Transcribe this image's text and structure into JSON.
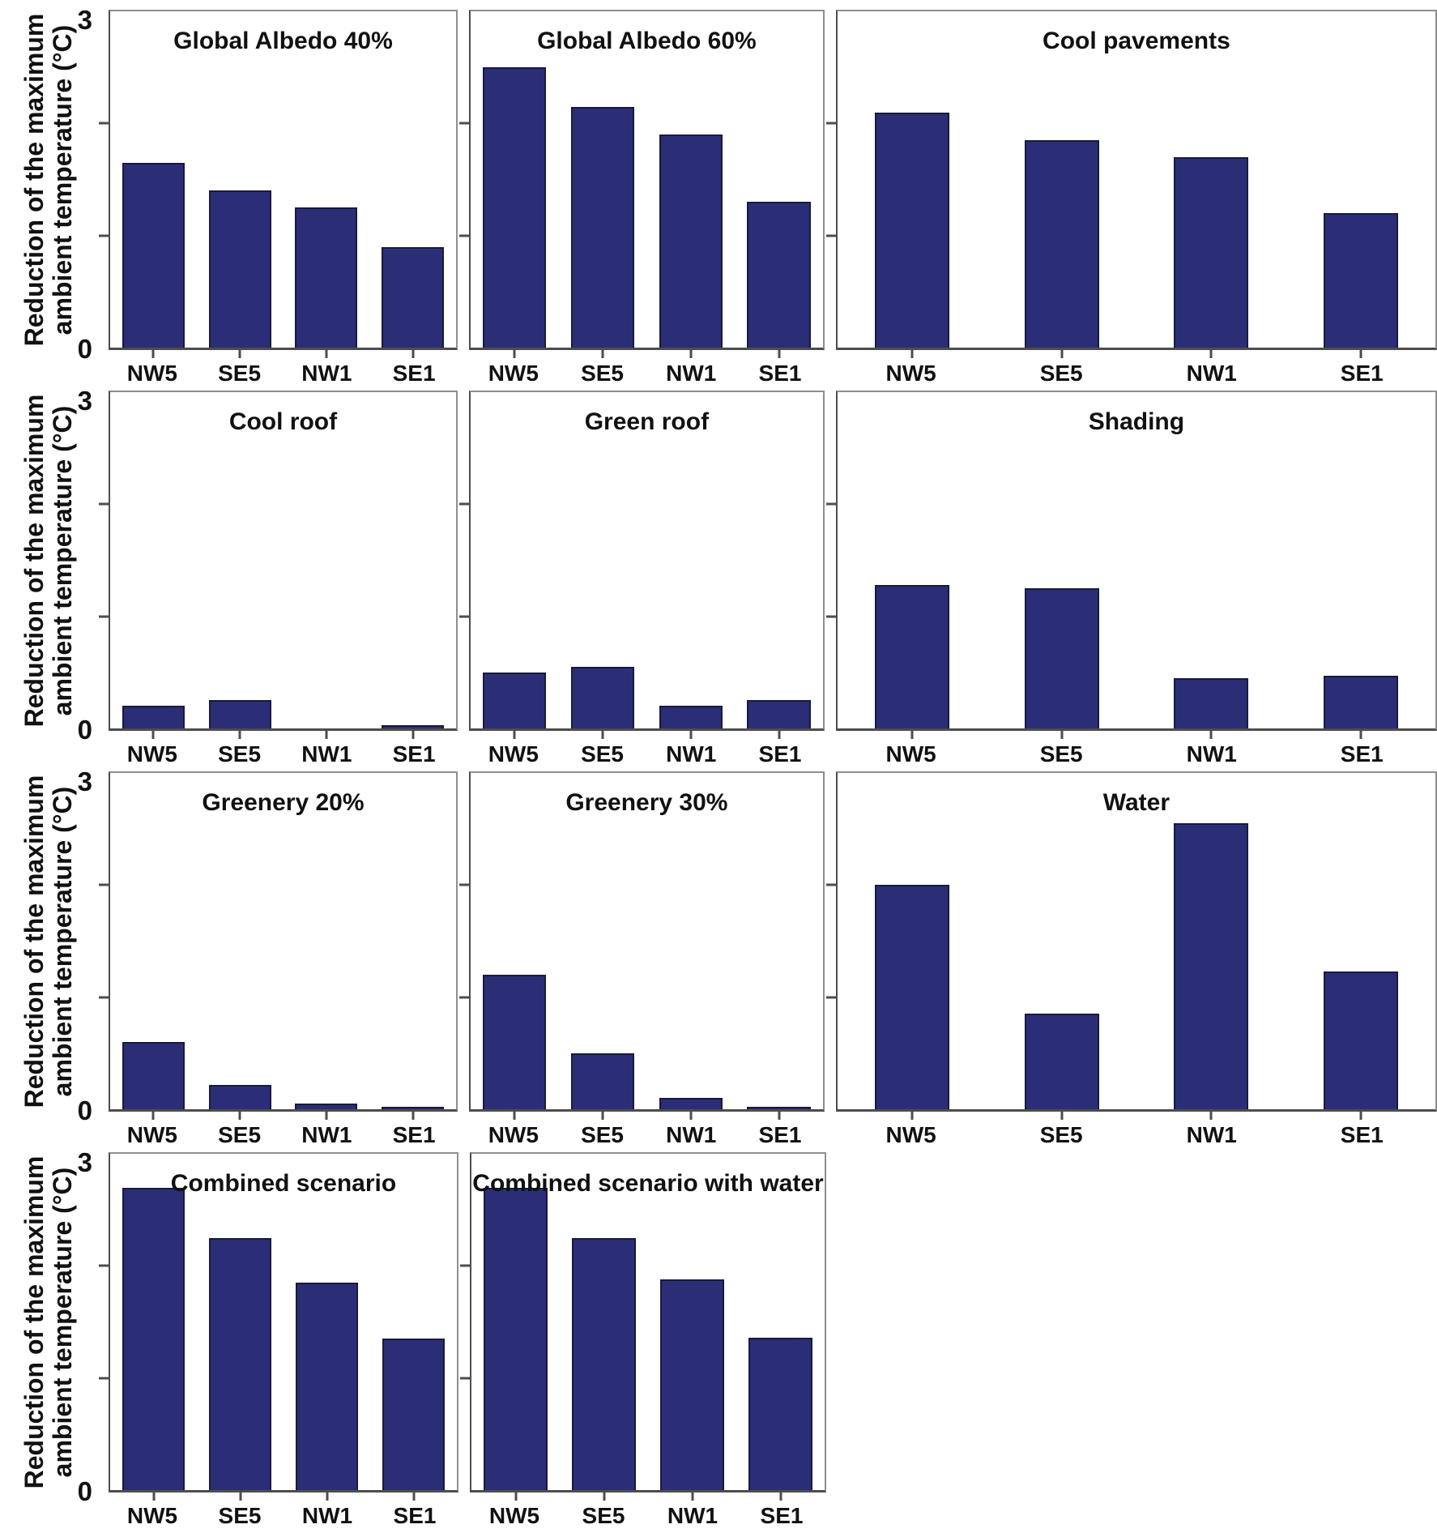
{
  "figure": {
    "ylabel": "Reduction of the maximum ambient temperature (°C)",
    "y_axis": {
      "top_label": "3",
      "bottom_label": "0",
      "ymax": 3,
      "minor_ticks": [
        1,
        2
      ]
    }
  },
  "colors": {
    "bar_fill": "#2b2e76",
    "bar_edge": "#181a3e",
    "panel_border": "#8f8f8f",
    "axis_line": "#4d4d4d",
    "text": "#111111"
  },
  "chart_data": [
    {
      "type": "bar",
      "title": "Global Albedo 40%",
      "categories": [
        "NW5",
        "SE5",
        "NW1",
        "SE1"
      ],
      "values": [
        1.65,
        1.4,
        1.25,
        0.9
      ],
      "xlabel": "",
      "ylabel": "Reduction of the maximum ambient temperature (°C)",
      "ylim": [
        0,
        3
      ],
      "grid": false,
      "legend": "none"
    },
    {
      "type": "bar",
      "title": "Global Albedo 60%",
      "categories": [
        "NW5",
        "SE5",
        "NW1",
        "SE1"
      ],
      "values": [
        2.5,
        2.15,
        1.9,
        1.3
      ],
      "xlabel": "",
      "ylabel": "Reduction of the maximum ambient temperature (°C)",
      "ylim": [
        0,
        3
      ],
      "grid": false,
      "legend": "none"
    },
    {
      "type": "bar",
      "title": "Cool pavements",
      "categories": [
        "NW5",
        "SE5",
        "NW1",
        "SE1"
      ],
      "values": [
        2.1,
        1.85,
        1.7,
        1.2
      ],
      "xlabel": "",
      "ylabel": "Reduction of the maximum ambient temperature (°C)",
      "ylim": [
        0,
        3
      ],
      "grid": false,
      "legend": "none"
    },
    {
      "type": "bar",
      "title": "Cool roof",
      "categories": [
        "NW5",
        "SE5",
        "NW1",
        "SE1"
      ],
      "values": [
        0.2,
        0.25,
        0.0,
        0.03
      ],
      "xlabel": "",
      "ylabel": "Reduction of the maximum ambient temperature (°C)",
      "ylim": [
        0,
        3
      ],
      "grid": false,
      "legend": "none"
    },
    {
      "type": "bar",
      "title": "Green roof",
      "categories": [
        "NW5",
        "SE5",
        "NW1",
        "SE1"
      ],
      "values": [
        0.5,
        0.55,
        0.2,
        0.25
      ],
      "xlabel": "",
      "ylabel": "Reduction of the maximum ambient temperature (°C)",
      "ylim": [
        0,
        3
      ],
      "grid": false,
      "legend": "none"
    },
    {
      "type": "bar",
      "title": "Shading",
      "categories": [
        "NW5",
        "SE5",
        "NW1",
        "SE1"
      ],
      "values": [
        1.28,
        1.25,
        0.45,
        0.47
      ],
      "xlabel": "",
      "ylabel": "Reduction of the maximum ambient temperature (°C)",
      "ylim": [
        0,
        3
      ],
      "grid": false,
      "legend": "none"
    },
    {
      "type": "bar",
      "title": "Greenery 20%",
      "categories": [
        "NW5",
        "SE5",
        "NW1",
        "SE1"
      ],
      "values": [
        0.6,
        0.22,
        0.05,
        0.02
      ],
      "xlabel": "",
      "ylabel": "Reduction of the maximum ambient temperature (°C)",
      "ylim": [
        0,
        3
      ],
      "grid": false,
      "legend": "none"
    },
    {
      "type": "bar",
      "title": "Greenery 30%",
      "categories": [
        "NW5",
        "SE5",
        "NW1",
        "SE1"
      ],
      "values": [
        1.2,
        0.5,
        0.1,
        0.02
      ],
      "xlabel": "",
      "ylabel": "Reduction of the maximum ambient temperature (°C)",
      "ylim": [
        0,
        3
      ],
      "grid": false,
      "legend": "none"
    },
    {
      "type": "bar",
      "title": "Water",
      "categories": [
        "NW5",
        "SE5",
        "NW1",
        "SE1"
      ],
      "values": [
        2.0,
        0.85,
        2.55,
        1.23
      ],
      "xlabel": "",
      "ylabel": "Reduction of the maximum ambient temperature (°C)",
      "ylim": [
        0,
        3
      ],
      "grid": false,
      "legend": "none"
    },
    {
      "type": "bar",
      "title": "Combined scenario",
      "categories": [
        "NW5",
        "SE5",
        "NW1",
        "SE1"
      ],
      "values": [
        2.7,
        2.25,
        1.85,
        1.35
      ],
      "xlabel": "",
      "ylabel": "Reduction of the maximum ambient temperature (°C)",
      "ylim": [
        0,
        3
      ],
      "grid": false,
      "legend": "none"
    },
    {
      "type": "bar",
      "title": "Combined scenario with water",
      "categories": [
        "NW5",
        "SE5",
        "NW1",
        "SE1"
      ],
      "values": [
        2.7,
        2.25,
        1.88,
        1.36
      ],
      "xlabel": "",
      "ylabel": "Reduction of the maximum ambient temperature (°C)",
      "ylim": [
        0,
        3
      ],
      "grid": false,
      "legend": "none"
    }
  ]
}
